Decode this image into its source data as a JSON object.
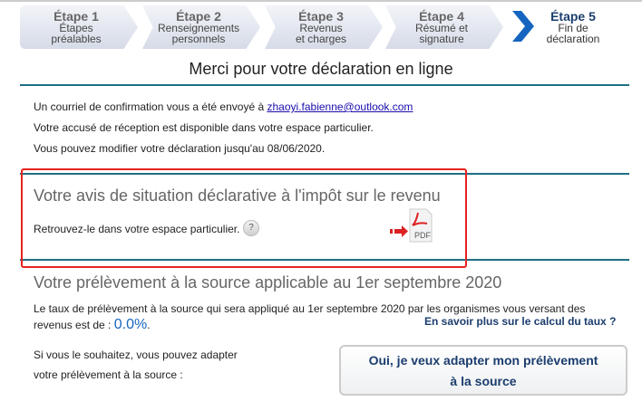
{
  "steps": [
    {
      "num": "Étape 1",
      "line1": "Étapes",
      "line2": "préalables"
    },
    {
      "num": "Étape 2",
      "line1": "Renseignements",
      "line2": "personnels"
    },
    {
      "num": "Étape 3",
      "line1": "Revenus",
      "line2": "et charges"
    },
    {
      "num": "Étape 4",
      "line1": "Résumé et",
      "line2": "signature"
    },
    {
      "num": "Étape 5",
      "line1": "Fin de",
      "line2": "déclaration"
    }
  ],
  "title": "Merci pour votre déclaration en ligne",
  "confirm": {
    "prefix": "Un courriel de confirmation vous a été envoyé à ",
    "email": "zhaoyi.fabienne@outlook.com"
  },
  "receipt": "Votre accusé de réception est disponible dans votre espace particulier.",
  "modify": "Vous pouvez modifier votre déclaration jusqu'au 08/06/2020.",
  "avis": {
    "heading": "Votre avis de situation déclarative à l'impôt sur le revenu",
    "text": "Retrouvez-le dans votre espace particulier.",
    "help": "?",
    "pdf": "PDF"
  },
  "pas": {
    "heading": "Votre prélèvement à la source applicable au 1er septembre 2020",
    "text1": "Le taux de prélèvement à la source qui sera appliqué au 1er septembre 2020 par les organismes vous versant des",
    "text2": "revenus est de : ",
    "rate": "0.0%",
    "dot": ".",
    "link": "En savoir plus sur le calcul du taux ?",
    "adapt1": "Si vous le souhaitez, vous pouvez adapter",
    "adapt2": "votre prélèvement à la source :",
    "button1": "Oui, je veux adapter mon prélèvement",
    "button2": "à la source"
  },
  "colors": {
    "accent": "#1f6f86",
    "highlight": "#e52421",
    "active_chevron": "#1565c0"
  }
}
